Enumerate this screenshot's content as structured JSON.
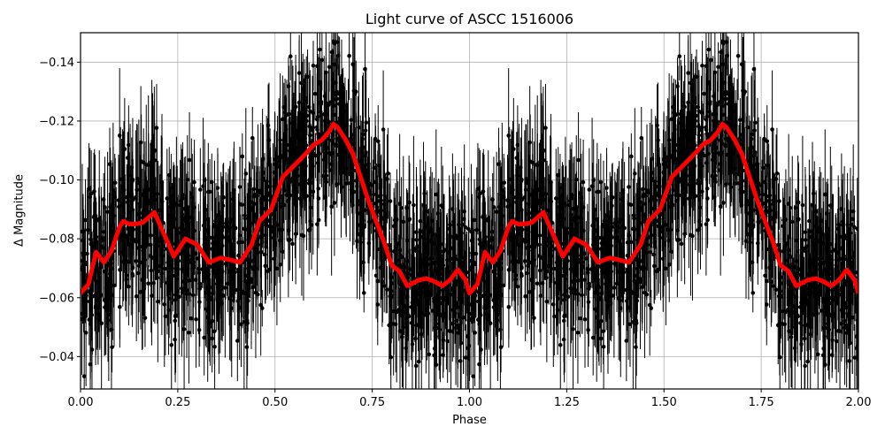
{
  "chart_data": {
    "type": "scatter",
    "title": "Light curve of ASCC 1516006",
    "xlabel": "Phase",
    "ylabel": "Δ Magnitude",
    "xlim": [
      0.0,
      2.0
    ],
    "ylim": [
      -0.029,
      -0.15
    ],
    "y_inverted": true,
    "grid": true,
    "x_ticks": [
      0.0,
      0.25,
      0.5,
      0.75,
      1.0,
      1.25,
      1.5,
      1.75,
      2.0
    ],
    "x_tick_labels": [
      "0.00",
      "0.25",
      "0.50",
      "0.75",
      "1.00",
      "1.25",
      "1.50",
      "1.75",
      "2.00"
    ],
    "y_ticks": [
      -0.14,
      -0.12,
      -0.1,
      -0.08,
      -0.06,
      -0.04
    ],
    "y_tick_labels": [
      "−0.14",
      "−0.12",
      "−0.10",
      "−0.08",
      "−0.06",
      "−0.04"
    ],
    "series": [
      {
        "name": "observations",
        "style": "black points with vertical error bars",
        "color": "#000000",
        "note": "dense phase-folded photometry, scatter roughly ±0.02 to ±0.04 around the model"
      },
      {
        "name": "smoothed model",
        "style": "thick red line",
        "color": "#ff0000",
        "x": [
          0.0,
          0.02,
          0.03,
          0.04,
          0.06,
          0.08,
          0.1,
          0.11,
          0.125,
          0.14,
          0.16,
          0.19,
          0.21,
          0.24,
          0.27,
          0.3,
          0.33,
          0.36,
          0.38,
          0.41,
          0.44,
          0.46,
          0.49,
          0.52,
          0.55,
          0.58,
          0.6,
          0.62,
          0.64,
          0.65,
          0.66,
          0.68,
          0.7,
          0.72,
          0.74,
          0.76,
          0.78,
          0.8,
          0.82,
          0.84,
          0.87,
          0.89,
          0.91,
          0.93,
          0.95,
          0.97,
          0.99,
          1.0
        ],
        "y": [
          -0.0615,
          -0.0645,
          -0.07,
          -0.0755,
          -0.072,
          -0.076,
          -0.084,
          -0.086,
          -0.085,
          -0.085,
          -0.0855,
          -0.089,
          -0.083,
          -0.074,
          -0.08,
          -0.078,
          -0.072,
          -0.0735,
          -0.073,
          -0.072,
          -0.078,
          -0.086,
          -0.09,
          -0.101,
          -0.105,
          -0.109,
          -0.112,
          -0.1135,
          -0.1165,
          -0.119,
          -0.118,
          -0.114,
          -0.109,
          -0.101,
          -0.093,
          -0.086,
          -0.079,
          -0.071,
          -0.069,
          -0.064,
          -0.066,
          -0.0665,
          -0.0655,
          -0.064,
          -0.066,
          -0.0695,
          -0.066,
          -0.0615
        ]
      }
    ],
    "repeat_period": 1.0
  }
}
